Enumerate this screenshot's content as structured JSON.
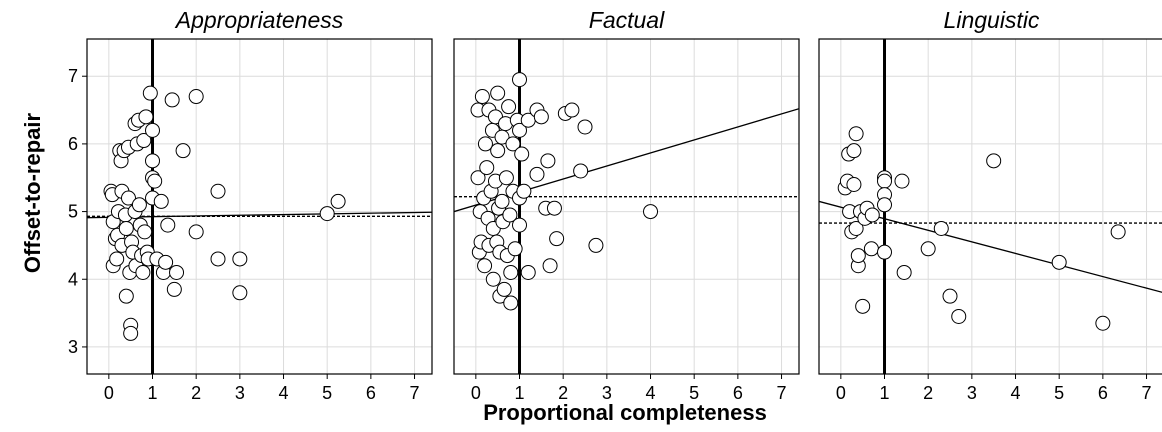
{
  "xlabel": "Proportional completeness",
  "ylabel": "Offset-to-repair",
  "chart_data": [
    {
      "type": "scatter",
      "title": "Appropriateness",
      "xlabel": "Proportional completeness",
      "ylabel": "Offset-to-repair",
      "xlim": [
        -0.5,
        7.4
      ],
      "ylim": [
        2.6,
        7.55
      ],
      "xticks": [
        0,
        1,
        2,
        3,
        4,
        5,
        6,
        7
      ],
      "yticks": [
        3,
        4,
        5,
        6,
        7
      ],
      "grid": true,
      "reference_line_x": 1,
      "mean_line_y": 4.93,
      "fit_line": {
        "x": [
          -0.5,
          7.4
        ],
        "y": [
          4.91,
          4.99
        ]
      },
      "points": [
        [
          0.05,
          5.3
        ],
        [
          0.08,
          5.25
        ],
        [
          0.1,
          4.85
        ],
        [
          0.1,
          4.2
        ],
        [
          0.15,
          4.6
        ],
        [
          0.18,
          4.3
        ],
        [
          0.2,
          4.65
        ],
        [
          0.22,
          5.0
        ],
        [
          0.25,
          5.9
        ],
        [
          0.28,
          5.75
        ],
        [
          0.3,
          5.3
        ],
        [
          0.3,
          4.5
        ],
        [
          0.35,
          5.9
        ],
        [
          0.38,
          4.95
        ],
        [
          0.4,
          4.75
        ],
        [
          0.4,
          3.75
        ],
        [
          0.45,
          5.95
        ],
        [
          0.45,
          5.2
        ],
        [
          0.48,
          4.1
        ],
        [
          0.5,
          3.32
        ],
        [
          0.5,
          3.2
        ],
        [
          0.52,
          4.55
        ],
        [
          0.55,
          4.4
        ],
        [
          0.6,
          6.3
        ],
        [
          0.6,
          5.0
        ],
        [
          0.62,
          4.2
        ],
        [
          0.65,
          6.0
        ],
        [
          0.68,
          6.35
        ],
        [
          0.7,
          5.1
        ],
        [
          0.72,
          4.8
        ],
        [
          0.75,
          4.35
        ],
        [
          0.78,
          4.1
        ],
        [
          0.8,
          6.05
        ],
        [
          0.82,
          4.7
        ],
        [
          0.85,
          6.4
        ],
        [
          0.88,
          4.4
        ],
        [
          0.9,
          4.3
        ],
        [
          0.95,
          6.75
        ],
        [
          1.0,
          6.2
        ],
        [
          1.0,
          5.75
        ],
        [
          1.0,
          5.5
        ],
        [
          1.0,
          5.2
        ],
        [
          1.05,
          5.45
        ],
        [
          1.1,
          4.3
        ],
        [
          1.2,
          5.15
        ],
        [
          1.25,
          4.1
        ],
        [
          1.3,
          4.25
        ],
        [
          1.35,
          4.8
        ],
        [
          1.45,
          6.65
        ],
        [
          1.5,
          3.85
        ],
        [
          1.55,
          4.1
        ],
        [
          1.7,
          5.9
        ],
        [
          2.0,
          6.7
        ],
        [
          2.0,
          4.7
        ],
        [
          2.5,
          5.3
        ],
        [
          2.5,
          4.3
        ],
        [
          3.0,
          4.3
        ],
        [
          3.0,
          3.8
        ],
        [
          5.0,
          4.97
        ],
        [
          5.25,
          5.15
        ]
      ]
    },
    {
      "type": "scatter",
      "title": "Factual",
      "xlabel": "Proportional completeness",
      "ylabel": "Offset-to-repair",
      "xlim": [
        -0.5,
        7.4
      ],
      "ylim": [
        2.6,
        7.55
      ],
      "xticks": [
        0,
        1,
        2,
        3,
        4,
        5,
        6,
        7
      ],
      "yticks": [
        3,
        4,
        5,
        6,
        7
      ],
      "grid": true,
      "reference_line_x": 1,
      "mean_line_y": 5.22,
      "fit_line": {
        "x": [
          -0.5,
          7.4
        ],
        "y": [
          5.0,
          6.52
        ]
      },
      "points": [
        [
          0.05,
          6.5
        ],
        [
          0.05,
          5.5
        ],
        [
          0.08,
          4.4
        ],
        [
          0.1,
          5.0
        ],
        [
          0.12,
          4.55
        ],
        [
          0.15,
          6.7
        ],
        [
          0.18,
          5.2
        ],
        [
          0.2,
          4.2
        ],
        [
          0.22,
          6.0
        ],
        [
          0.25,
          5.65
        ],
        [
          0.28,
          4.9
        ],
        [
          0.3,
          6.5
        ],
        [
          0.3,
          4.5
        ],
        [
          0.35,
          5.3
        ],
        [
          0.38,
          6.2
        ],
        [
          0.4,
          4.75
        ],
        [
          0.4,
          4.0
        ],
        [
          0.45,
          6.4
        ],
        [
          0.45,
          5.45
        ],
        [
          0.48,
          4.55
        ],
        [
          0.5,
          6.75
        ],
        [
          0.5,
          5.9
        ],
        [
          0.52,
          5.05
        ],
        [
          0.55,
          4.4
        ],
        [
          0.55,
          3.75
        ],
        [
          0.6,
          6.1
        ],
        [
          0.6,
          5.15
        ],
        [
          0.62,
          4.85
        ],
        [
          0.65,
          3.85
        ],
        [
          0.68,
          6.3
        ],
        [
          0.7,
          5.5
        ],
        [
          0.72,
          4.35
        ],
        [
          0.75,
          6.55
        ],
        [
          0.78,
          4.95
        ],
        [
          0.8,
          4.1
        ],
        [
          0.8,
          3.65
        ],
        [
          0.85,
          6.0
        ],
        [
          0.85,
          5.3
        ],
        [
          0.9,
          4.45
        ],
        [
          0.95,
          6.35
        ],
        [
          1.0,
          6.95
        ],
        [
          1.0,
          6.2
        ],
        [
          1.0,
          5.2
        ],
        [
          1.0,
          4.8
        ],
        [
          1.05,
          5.85
        ],
        [
          1.1,
          5.3
        ],
        [
          1.2,
          6.35
        ],
        [
          1.2,
          4.1
        ],
        [
          1.4,
          6.5
        ],
        [
          1.4,
          5.55
        ],
        [
          1.5,
          6.4
        ],
        [
          1.6,
          5.05
        ],
        [
          1.65,
          5.75
        ],
        [
          1.7,
          4.2
        ],
        [
          1.8,
          5.05
        ],
        [
          1.85,
          4.6
        ],
        [
          2.05,
          6.45
        ],
        [
          2.2,
          6.5
        ],
        [
          2.4,
          5.6
        ],
        [
          2.5,
          6.25
        ],
        [
          2.75,
          4.5
        ],
        [
          4.0,
          5.0
        ]
      ]
    },
    {
      "type": "scatter",
      "title": "Linguistic",
      "xlabel": "Proportional completeness",
      "ylabel": "Offset-to-repair",
      "xlim": [
        -0.5,
        7.4
      ],
      "ylim": [
        2.6,
        7.55
      ],
      "xticks": [
        0,
        1,
        2,
        3,
        4,
        5,
        6,
        7
      ],
      "yticks": [
        3,
        4,
        5,
        6,
        7
      ],
      "grid": true,
      "reference_line_x": 1,
      "mean_line_y": 4.83,
      "fit_line": {
        "x": [
          -0.5,
          7.4
        ],
        "y": [
          5.15,
          3.8
        ]
      },
      "points": [
        [
          0.1,
          5.35
        ],
        [
          0.15,
          5.45
        ],
        [
          0.18,
          5.85
        ],
        [
          0.2,
          5.0
        ],
        [
          0.25,
          4.7
        ],
        [
          0.3,
          5.4
        ],
        [
          0.3,
          5.9
        ],
        [
          0.35,
          6.15
        ],
        [
          0.35,
          4.75
        ],
        [
          0.4,
          4.2
        ],
        [
          0.4,
          4.35
        ],
        [
          0.45,
          5.0
        ],
        [
          0.5,
          3.6
        ],
        [
          0.55,
          4.9
        ],
        [
          0.6,
          5.05
        ],
        [
          0.7,
          4.45
        ],
        [
          0.72,
          4.95
        ],
        [
          1.0,
          5.5
        ],
        [
          1.0,
          5.45
        ],
        [
          1.0,
          5.25
        ],
        [
          1.0,
          5.1
        ],
        [
          1.0,
          4.4
        ],
        [
          1.4,
          5.45
        ],
        [
          1.45,
          4.1
        ],
        [
          2.0,
          4.45
        ],
        [
          2.3,
          4.75
        ],
        [
          2.5,
          3.75
        ],
        [
          2.7,
          3.45
        ],
        [
          3.5,
          5.75
        ],
        [
          5.0,
          4.25
        ],
        [
          6.0,
          3.35
        ],
        [
          6.35,
          4.7
        ]
      ]
    }
  ]
}
